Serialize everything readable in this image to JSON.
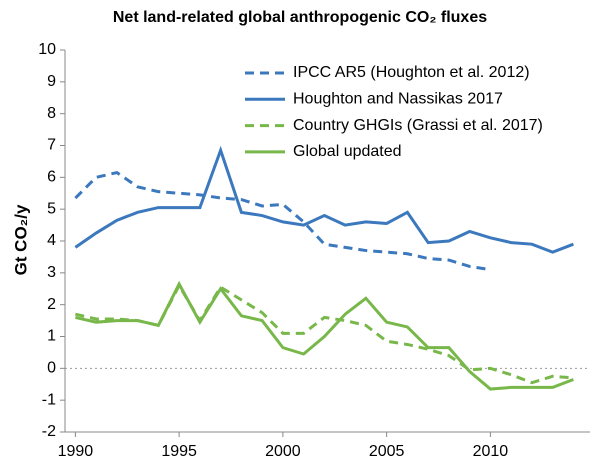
{
  "chart_data": {
    "type": "line",
    "title": "Net land-related global anthropogenic CO₂ fluxes",
    "y_label": "Gt CO₂/y",
    "x": [
      1990,
      1991,
      1992,
      1993,
      1994,
      1995,
      1996,
      1997,
      1998,
      1999,
      2000,
      2001,
      2002,
      2003,
      2004,
      2005,
      2006,
      2007,
      2008,
      2009,
      2010,
      2011,
      2012,
      2013,
      2014
    ],
    "series": [
      {
        "name": "IPCC AR5 (Houghton et al. 2012)",
        "color": "#3b78bd",
        "style": "dashed",
        "values": [
          5.35,
          6.0,
          6.15,
          5.7,
          5.55,
          5.5,
          5.45,
          5.35,
          5.3,
          5.1,
          5.15,
          4.6,
          3.9,
          3.8,
          3.7,
          3.65,
          3.6,
          3.45,
          3.4,
          3.2,
          3.1,
          null,
          null,
          null,
          null
        ]
      },
      {
        "name": "Houghton and Nassikas 2017",
        "color": "#3b78bd",
        "style": "solid",
        "values": [
          3.8,
          4.25,
          4.65,
          4.9,
          5.05,
          5.05,
          5.05,
          6.85,
          4.9,
          4.8,
          4.6,
          4.5,
          4.8,
          4.5,
          4.6,
          4.55,
          4.9,
          3.95,
          4.0,
          4.3,
          4.1,
          3.95,
          3.9,
          3.65,
          3.9
        ]
      },
      {
        "name": "Country GHGIs (Grassi et al. 2017)",
        "color": "#78b84a",
        "style": "dashed",
        "values": [
          1.7,
          1.55,
          1.55,
          1.5,
          1.35,
          2.6,
          1.5,
          2.55,
          2.15,
          1.75,
          1.1,
          1.1,
          1.6,
          1.5,
          1.35,
          0.85,
          0.75,
          0.6,
          0.4,
          -0.05,
          0.0,
          -0.2,
          -0.45,
          -0.25,
          -0.3
        ]
      },
      {
        "name": "Global updated",
        "color": "#78b84a",
        "style": "solid",
        "values": [
          1.6,
          1.45,
          1.5,
          1.5,
          1.35,
          2.65,
          1.45,
          2.5,
          1.65,
          1.5,
          0.65,
          0.45,
          1.0,
          1.7,
          2.2,
          1.45,
          1.3,
          0.65,
          0.65,
          -0.1,
          -0.65,
          -0.6,
          -0.6,
          -0.6,
          -0.35
        ]
      }
    ],
    "xlim": [
      1989.5,
      2014.8
    ],
    "xticks": [
      1990,
      1995,
      2000,
      2005,
      2010
    ],
    "ylim": [
      -2,
      10
    ],
    "yticks": [
      -2,
      -1,
      0,
      1,
      2,
      3,
      4,
      5,
      6,
      7,
      8,
      9,
      10
    ],
    "legend": "upper right"
  }
}
